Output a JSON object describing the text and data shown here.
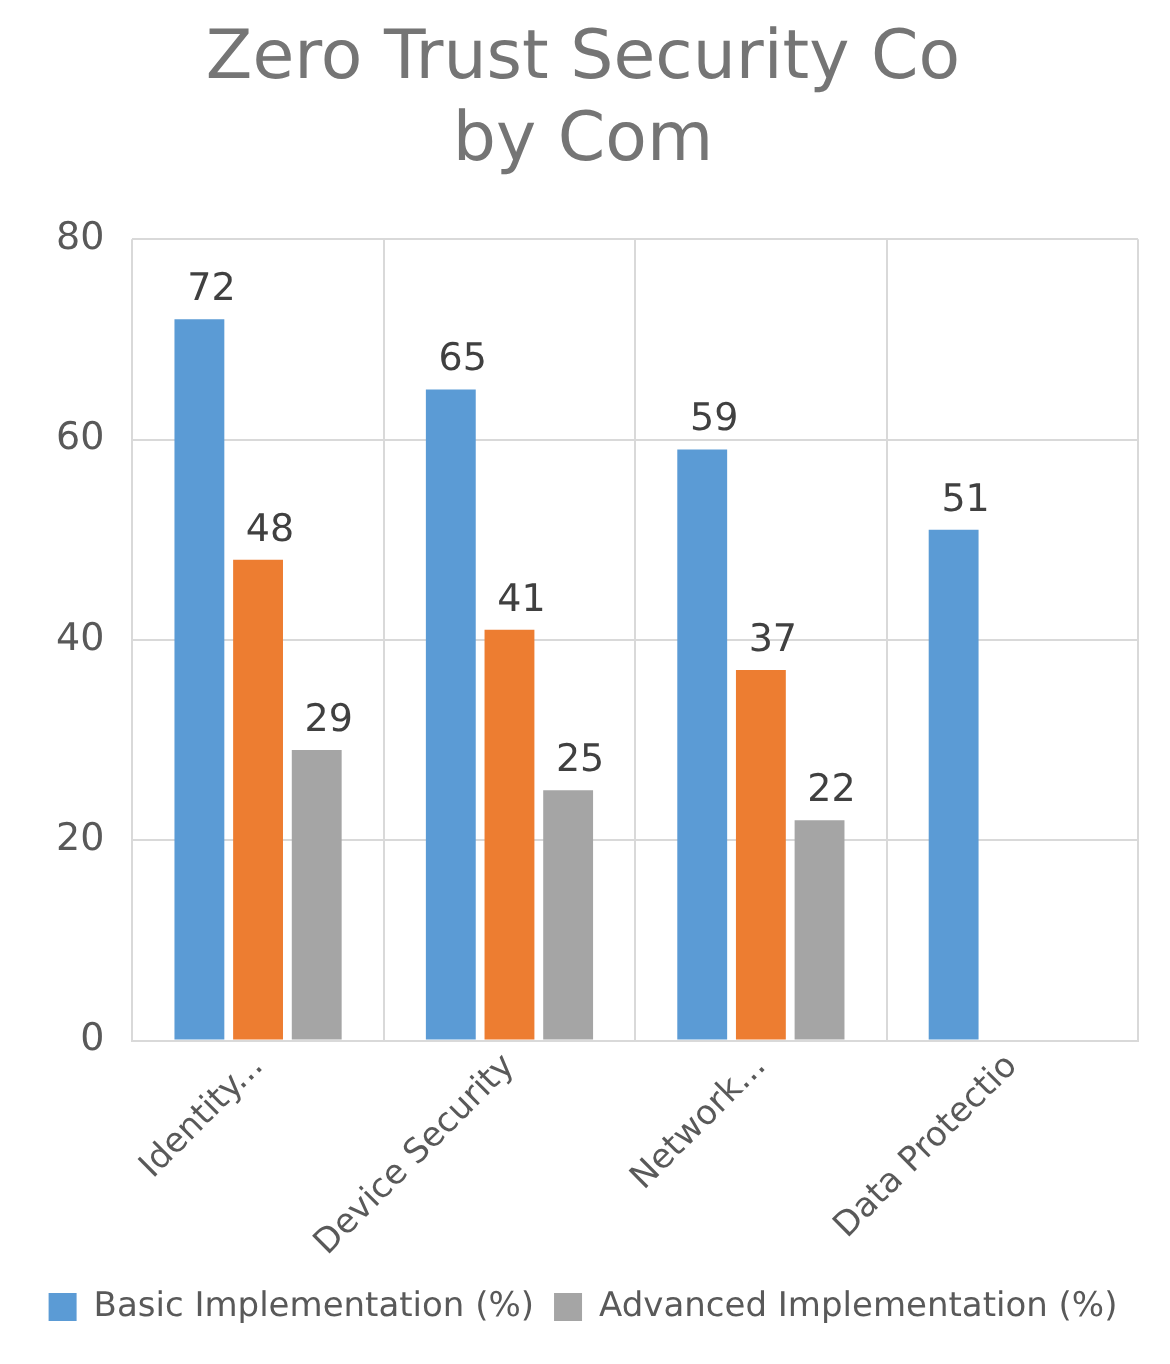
{
  "chart_data": {
    "type": "bar",
    "title": [
      "Zero Trust Security Co",
      "by Com"
    ],
    "categories": [
      "Identity...",
      "Device Security",
      "Network...",
      "Data Protectio"
    ],
    "series": [
      {
        "name": "Basic Implementation (%)",
        "color": "#5b9bd5",
        "values": [
          72,
          65,
          59,
          51
        ]
      },
      {
        "color": "#ed7d31",
        "values": [
          48,
          41,
          37,
          null
        ]
      },
      {
        "name": "Advanced Implementation (%)",
        "color": "#a5a5a5",
        "values": [
          29,
          25,
          22,
          null
        ]
      }
    ],
    "ylim": [
      0,
      80
    ],
    "yticks": [
      0,
      20,
      40,
      60,
      80
    ],
    "grid": true,
    "legend": "bottom",
    "data_labels": true
  }
}
